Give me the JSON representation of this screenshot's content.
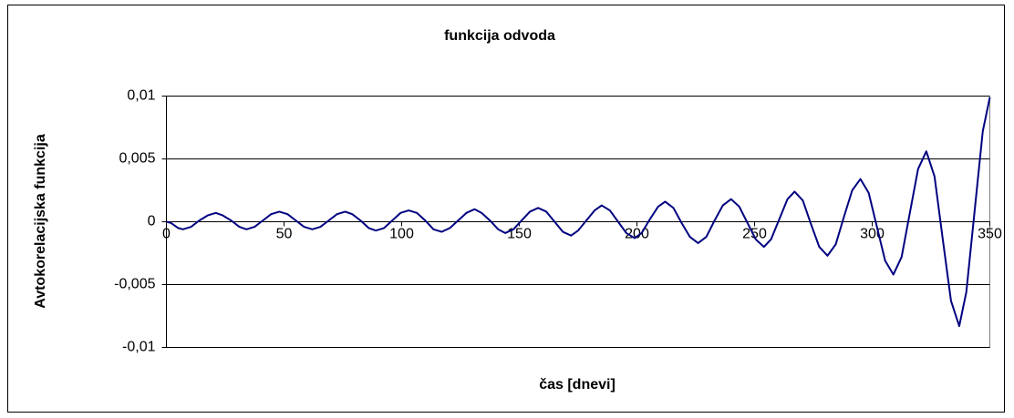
{
  "chart_data": {
    "type": "line",
    "title": "funkcija odvoda",
    "xlabel": "čas [dnevi]",
    "ylabel": "Avtokorelacijska funkcija",
    "x": [
      0,
      2,
      3.5,
      5,
      7,
      10.5,
      14,
      17.5,
      21,
      24,
      27.5,
      31,
      34,
      37.5,
      41,
      44.5,
      48,
      51.5,
      55,
      58.5,
      62,
      65.5,
      69,
      72.5,
      76,
      79,
      82.5,
      86,
      89,
      92.5,
      96,
      99.5,
      103,
      106.5,
      110,
      113.5,
      117,
      120.5,
      124,
      127.5,
      131,
      134,
      137.5,
      141,
      144,
      147.5,
      151,
      154.5,
      158,
      161.5,
      165,
      168.5,
      172,
      175,
      178.5,
      182,
      185,
      188.5,
      192,
      195.5,
      199,
      202,
      205.5,
      209,
      212,
      215.5,
      219,
      222.5,
      226,
      229.5,
      233,
      236.5,
      240,
      243.5,
      247,
      250.5,
      254,
      257,
      260.5,
      264,
      267,
      270.5,
      274,
      277.5,
      281,
      284.5,
      288,
      291.5,
      295,
      298.5,
      302,
      305.5,
      309,
      312.5,
      316,
      319.5,
      323,
      326.5,
      330,
      333.5,
      337,
      340,
      343.5,
      347,
      350
    ],
    "series": [
      {
        "color": "#000080",
        "values": [
          0,
          -0.0001,
          -0.0003,
          -0.0005,
          -0.0006,
          -0.0004,
          0.0001,
          0.0005,
          0.0007,
          0.0005,
          0.0001,
          -0.0004,
          -0.0006,
          -0.0004,
          0.0001,
          0.0006,
          0.0008,
          0.0006,
          0.0001,
          -0.0004,
          -0.0006,
          -0.0004,
          0.0001,
          0.0006,
          0.0008,
          0.0006,
          0.0001,
          -0.0005,
          -0.0007,
          -0.0005,
          0.0001,
          0.0007,
          0.0009,
          0.0007,
          0.0001,
          -0.0006,
          -0.0008,
          -0.0005,
          0.0001,
          0.0007,
          0.001,
          0.0007,
          0.0001,
          -0.0006,
          -0.0009,
          -0.0006,
          0.0001,
          0.0008,
          0.0011,
          0.0008,
          0,
          -0.0008,
          -0.0011,
          -0.0007,
          0.0001,
          0.0009,
          0.0013,
          0.0009,
          0,
          -0.0009,
          -0.0013,
          -0.0009,
          0.0002,
          0.0012,
          0.0016,
          0.0011,
          -0.0001,
          -0.0012,
          -0.0017,
          -0.0012,
          0.0001,
          0.0013,
          0.0018,
          0.0012,
          -0.0001,
          -0.0014,
          -0.002,
          -0.0014,
          0.0002,
          0.0018,
          0.0024,
          0.0017,
          -0.0002,
          -0.002,
          -0.0027,
          -0.0018,
          0.0004,
          0.0025,
          0.0034,
          0.0023,
          -0.0004,
          -0.0031,
          -0.0042,
          -0.0028,
          0.0007,
          0.0042,
          0.0056,
          0.0036,
          -0.0014,
          -0.0063,
          -0.0083,
          -0.0056,
          0.0008,
          0.0072,
          0.0099
        ]
      }
    ],
    "xlim": [
      0,
      350
    ],
    "xticks": [
      0,
      50,
      100,
      150,
      200,
      250,
      300,
      350
    ],
    "ylim": [
      -0.01,
      0.01
    ],
    "yticks": [
      {
        "value": 0.01,
        "label": "0,01"
      },
      {
        "value": 0.005,
        "label": "0,005"
      },
      0,
      {
        "value": -0.005,
        "label": "-0,005"
      },
      {
        "value": -0.01,
        "label": "-0,01"
      }
    ],
    "grid": true
  }
}
